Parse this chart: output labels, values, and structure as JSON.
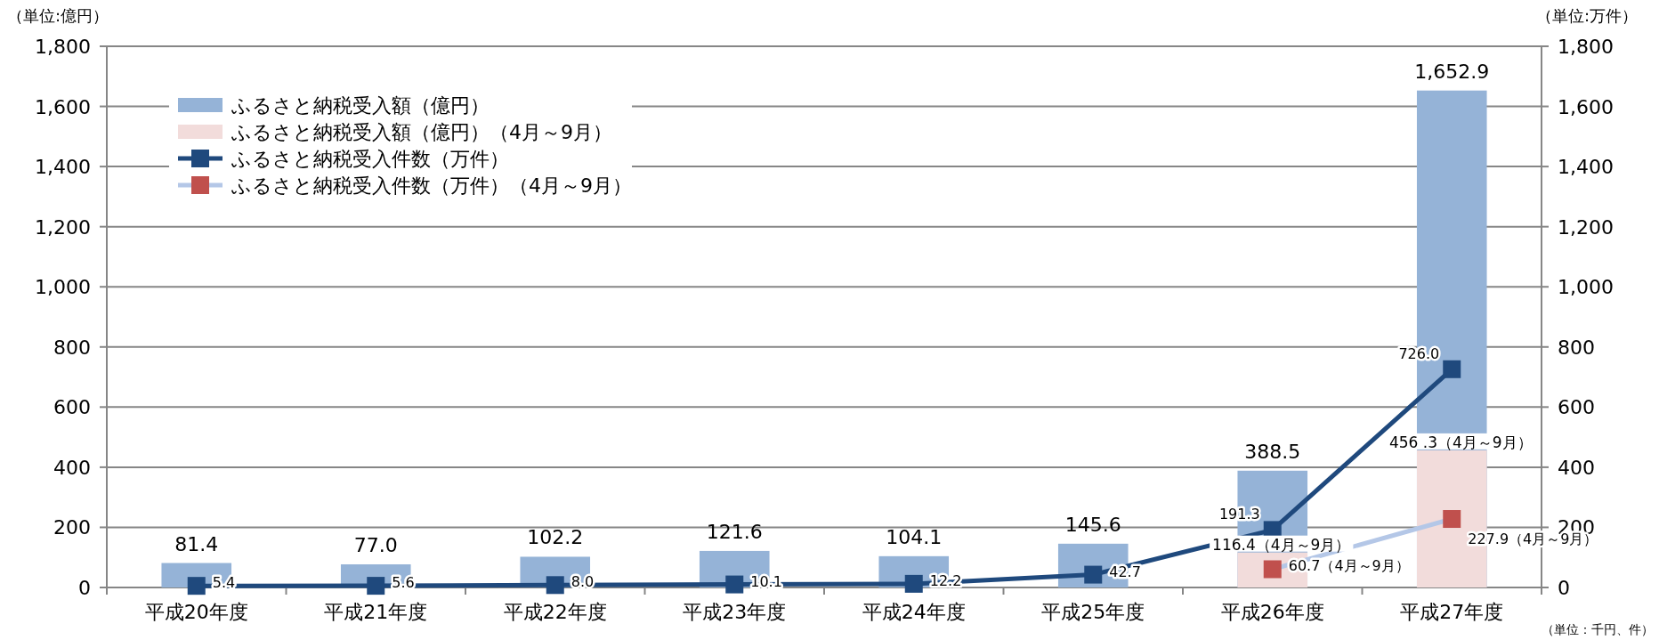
{
  "chart_data": {
    "type": "bar",
    "ylabel": "（単位:億円）",
    "y2label": "（単位:万件）",
    "categories": [
      "平成20年度",
      "平成21年度",
      "平成22年度",
      "平成23年度",
      "平成24年度",
      "平成25年度",
      "平成26年度",
      "平成27年度"
    ],
    "series": [
      {
        "name": "ふるさと納税受入額（億円）",
        "color": "#95b3d7",
        "values": [
          81.4,
          77.0,
          102.2,
          121.6,
          104.1,
          145.6,
          388.5,
          1652.9
        ],
        "value_labels": [
          "81.4",
          "77.0",
          "102.2",
          "121.6",
          "104.1",
          "145.6",
          "388.5",
          "1,652.9"
        ]
      },
      {
        "name": "ふるさと納税受入額（億円）（4月～9月）",
        "color": "#f2dcdb",
        "values": [
          null,
          null,
          null,
          null,
          null,
          null,
          116.4,
          456.3
        ],
        "value_labels": [
          null,
          null,
          null,
          null,
          null,
          null,
          "116.4（4月～9月）",
          "456 .3（4月～9月）"
        ]
      },
      {
        "name": "ふるさと納税受入件数（万件）",
        "type": "line",
        "color": "#1f497d",
        "values": [
          5.4,
          5.6,
          8.0,
          10.1,
          12.2,
          42.7,
          191.3,
          726.0
        ],
        "value_labels": [
          "5.4",
          "5.6",
          "8.0",
          "10.1",
          "12.2",
          "42.7",
          "191.3",
          "726.0"
        ]
      },
      {
        "name": "ふるさと納税受入件数（万件）（4月～9月）",
        "type": "line",
        "color": "#b4c7e7",
        "colors": [
          null,
          null,
          null,
          null,
          null,
          null,
          "#c0504d",
          "#c0504d"
        ],
        "values": [
          null,
          null,
          null,
          null,
          null,
          null,
          60.7,
          227.9
        ],
        "value_labels": [
          null,
          null,
          null,
          null,
          null,
          null,
          "60.7（4月～9月）",
          "227.9（4月～9月）"
        ]
      }
    ],
    "ylim": [
      0,
      1800
    ],
    "yticks": [
      0,
      200,
      400,
      600,
      800,
      {
        "value": 1000,
        "label": "1,000"
      },
      {
        "value": 1200,
        "label": "1,200"
      },
      {
        "value": 1400,
        "label": "1,400"
      },
      {
        "value": 1600,
        "label": "1,600"
      },
      {
        "value": 1800,
        "label": "1,800"
      }
    ],
    "y2lim": [
      0,
      1800
    ],
    "y2ticks": [
      0,
      200,
      400,
      600,
      800,
      {
        "value": 1000,
        "label": "1,000"
      },
      {
        "value": 1200,
        "label": "1,200"
      },
      {
        "value": 1400,
        "label": "1,400"
      },
      {
        "value": 1600,
        "label": "1,600"
      },
      {
        "value": 1800,
        "label": "1,800"
      }
    ],
    "grid": "y",
    "legend": "top left",
    "marker": "square",
    "annotations": [
      "（単位：千円、件）"
    ]
  }
}
